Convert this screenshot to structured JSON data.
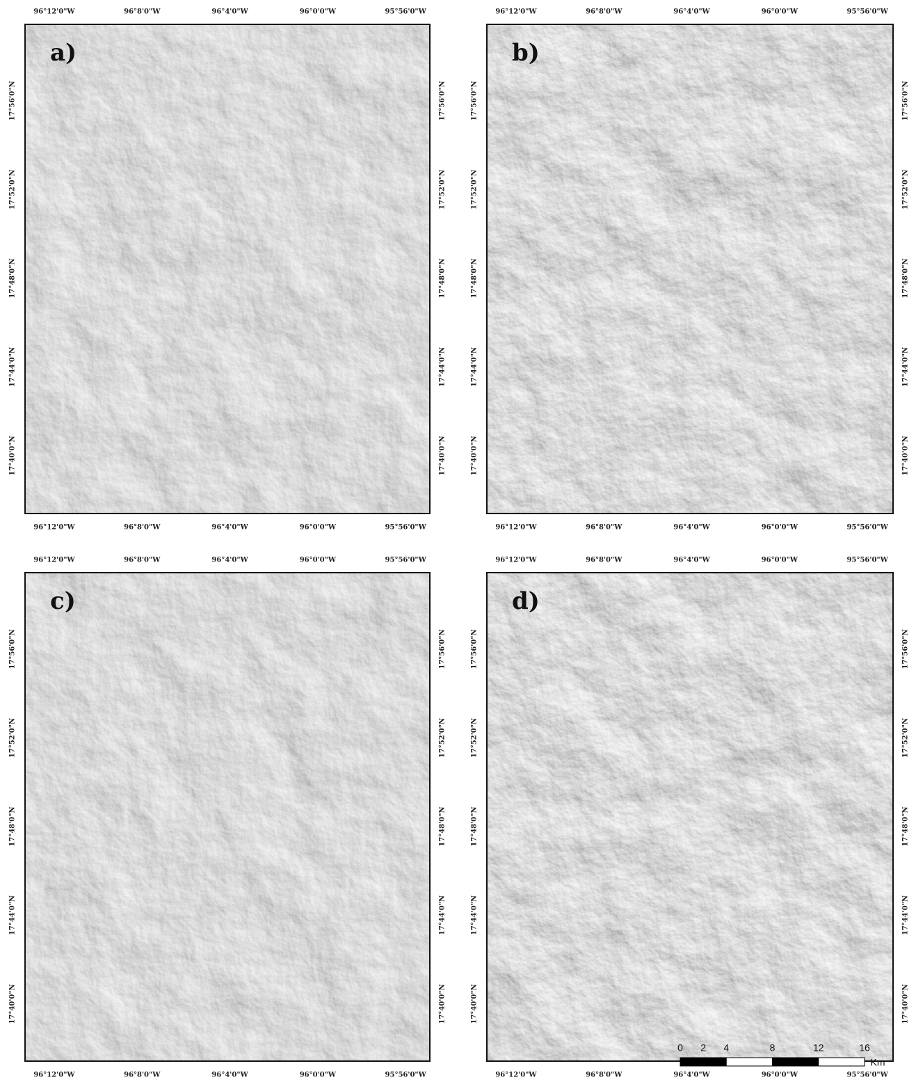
{
  "panels": [
    {
      "label": "a)"
    },
    {
      "label": "b)"
    },
    {
      "label": "c)"
    },
    {
      "label": "d)"
    }
  ],
  "longitude_labels": [
    "96°12'0\"W",
    "96°8'0\"W",
    "96°4'0\"W",
    "96°0'0\"W",
    "95°56'0\"W"
  ],
  "latitude_labels": [
    "17°56'0\"N",
    "17°52'0\"N",
    "17°48'0\"N",
    "17°44'0\"N",
    "17°40'0\"N"
  ],
  "scale_bar": {
    "ticks": [
      0,
      2,
      4,
      8,
      12,
      16
    ],
    "unit": "Km"
  }
}
